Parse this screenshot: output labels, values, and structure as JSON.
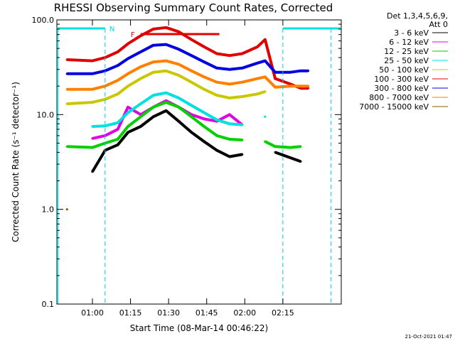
{
  "chart_data": {
    "type": "line",
    "title": "RHESSI Observing Summary Count Rates, Corrected",
    "xlabel": "Start Time (08-Mar-14 00:46:22)",
    "ylabel": "Corrected Count Rate (s⁻¹ detector⁻¹)",
    "ylog": true,
    "ylim": [
      0.1,
      100
    ],
    "xlim_minutes": [
      0,
      112
    ],
    "x_ticks": [
      {
        "min": 14,
        "label": "01:00"
      },
      {
        "min": 29,
        "label": "01:15"
      },
      {
        "min": 44,
        "label": "01:30"
      },
      {
        "min": 59,
        "label": "01:45"
      },
      {
        "min": 74,
        "label": "02:00"
      },
      {
        "min": 89,
        "label": "02:15"
      }
    ],
    "y_ticks": [
      {
        "value": 0.1,
        "label": "0.1"
      },
      {
        "value": 1.0,
        "label": "1.0"
      },
      {
        "value": 10,
        "label": "10.0"
      },
      {
        "value": 100,
        "label": "100.0"
      }
    ],
    "legend_header": [
      "Det 1,3,4,5,6,9,",
      "Att 0"
    ],
    "legend_position": "right",
    "x_minutes": [
      4,
      14,
      19,
      24,
      28,
      33,
      38,
      43,
      48,
      53,
      58,
      63,
      68,
      73,
      79,
      82,
      86,
      92,
      96,
      99
    ],
    "series": [
      {
        "name": "3 - 6 keV",
        "color": "#000000",
        "values": [
          null,
          2.5,
          4.2,
          4.8,
          6.5,
          7.5,
          9.5,
          11,
          8.5,
          6.5,
          5.2,
          4.2,
          3.6,
          3.8,
          null,
          null,
          4.0,
          3.5,
          3.2,
          null
        ]
      },
      {
        "name": "6 - 12 keV",
        "color": "#e000e0",
        "values": [
          null,
          5.6,
          6.0,
          7.0,
          12,
          10,
          12,
          14,
          12,
          10,
          9,
          8.5,
          10,
          7.8,
          null,
          null,
          null,
          null,
          null,
          null
        ]
      },
      {
        "name": "12 - 25 keV",
        "color": "#00d000",
        "values": [
          4.6,
          4.5,
          5.0,
          5.5,
          7.5,
          9.5,
          12,
          13.5,
          12,
          9.5,
          7.5,
          6.0,
          5.5,
          5.4,
          null,
          5.2,
          4.6,
          4.5,
          4.6,
          null
        ]
      },
      {
        "name": "25 - 50 keV",
        "color": "#00e0e0",
        "values": [
          null,
          7.5,
          7.6,
          8.2,
          10.5,
          13,
          16,
          17,
          15,
          12.5,
          10.5,
          8.8,
          8.0,
          7.8,
          null,
          9.5,
          null,
          null,
          null,
          null
        ]
      },
      {
        "name": "50 - 100 keV",
        "color": "#c8c800",
        "values": [
          13,
          13.5,
          14.5,
          16.5,
          20,
          24,
          28,
          29,
          26,
          22,
          18.5,
          16,
          15,
          15.5,
          16.5,
          17.5,
          null,
          null,
          null,
          null
        ]
      },
      {
        "name": "100 - 300 keV",
        "color": "#e00000",
        "values": [
          38,
          37,
          40,
          46,
          56,
          68,
          80,
          83,
          75,
          62,
          52,
          44,
          42,
          44,
          52,
          62,
          24,
          21,
          19,
          19
        ]
      },
      {
        "name": "300 - 800 keV",
        "color": "#0000e0",
        "values": [
          27,
          27,
          29,
          33,
          39,
          46,
          54,
          55,
          49,
          42,
          36,
          31,
          30,
          31,
          35,
          37,
          28,
          28,
          29,
          29
        ]
      },
      {
        "name": "800 - 7000 keV",
        "color": "#ff8000",
        "values": [
          18.5,
          18.5,
          20,
          23,
          27,
          32,
          36,
          37,
          34,
          29,
          25,
          22,
          21,
          22,
          24,
          25,
          19.5,
          20,
          20,
          20
        ]
      },
      {
        "name": "7000 - 15000 keV",
        "color": "#806000",
        "values": [
          1.0,
          null,
          null,
          null,
          null,
          null,
          null,
          null,
          null,
          null,
          null,
          null,
          null,
          null,
          null,
          null,
          null,
          null,
          null,
          null
        ]
      }
    ],
    "bars": [
      {
        "label": "N",
        "color": "#00e0e0",
        "x_start": 0,
        "x_end": 19
      },
      {
        "label": "F",
        "color": "#e00000",
        "x_start": 33,
        "x_end": 64
      },
      {
        "label": "",
        "color": "#00e0e0",
        "x_start": 89,
        "x_end": 112
      }
    ],
    "night_boundaries_minutes": [
      19,
      89,
      108
    ],
    "saa_line_minutes": [
      0
    ]
  },
  "footer": {
    "timestamp": "21-Oct-2021 01:47"
  }
}
